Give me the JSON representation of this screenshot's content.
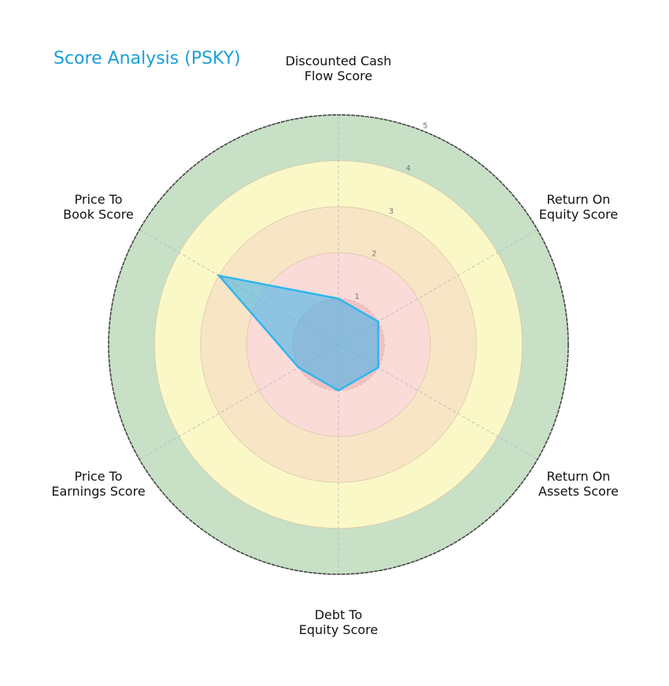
{
  "title": "Score Analysis (PSKY)",
  "colors": {
    "title": "#1a9fd4",
    "ring_colors": [
      "#fadbd8",
      "#f8e5c6",
      "#fbf8c8",
      "#c8e0c6"
    ],
    "inner_disc": "#f3c2c2",
    "series_line": "#2fb6ee",
    "series_fill": "#46b4ea",
    "outer_border": "#444444",
    "grid": "#b8b8b8"
  },
  "chart_data": {
    "type": "radar",
    "title": "Score Analysis (PSKY)",
    "categories": [
      "Discounted Cash Flow Score",
      "Return On Equity Score",
      "Return On Assets Score",
      "Debt To Equity Score",
      "Price To Earnings Score",
      "Price To Book Score"
    ],
    "category_label_lines": [
      [
        "Discounted Cash",
        "Flow Score"
      ],
      [
        "Return On",
        "Equity Score"
      ],
      [
        "Return On",
        "Assets Score"
      ],
      [
        "Debt To",
        "Equity Score"
      ],
      [
        "Price To",
        "Earnings Score"
      ],
      [
        "Price To",
        "Book Score"
      ]
    ],
    "series": [
      {
        "name": "PSKY",
        "values": [
          1,
          1,
          1,
          1,
          1,
          3
        ]
      }
    ],
    "rlim": [
      0,
      5
    ],
    "r_ticks": [
      "1",
      "2",
      "3",
      "4",
      "5"
    ],
    "grid": true,
    "legend": "none"
  }
}
